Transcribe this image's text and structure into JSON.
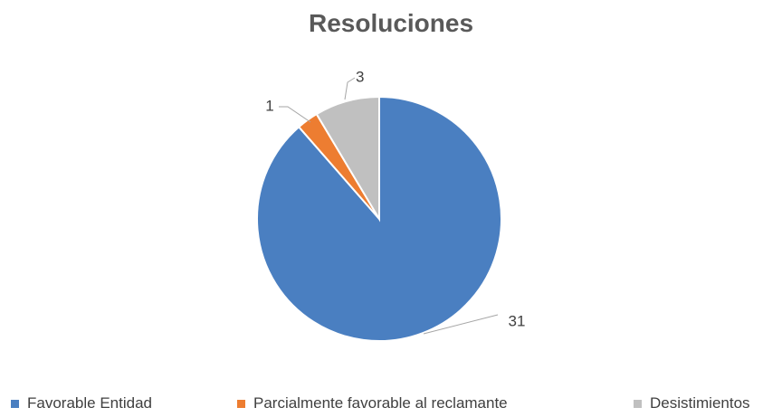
{
  "chart_data": {
    "type": "pie",
    "title": "Resoluciones",
    "categories": [
      "Favorable Entidad",
      "Parcialmente favorable al reclamante",
      "Desistimientos"
    ],
    "values": [
      31,
      1,
      3
    ],
    "colors": [
      "#4a7fc1",
      "#ed7d31",
      "#c0c0c0"
    ],
    "data_labels": [
      "31",
      "1",
      "3"
    ],
    "legend_position": "bottom"
  }
}
